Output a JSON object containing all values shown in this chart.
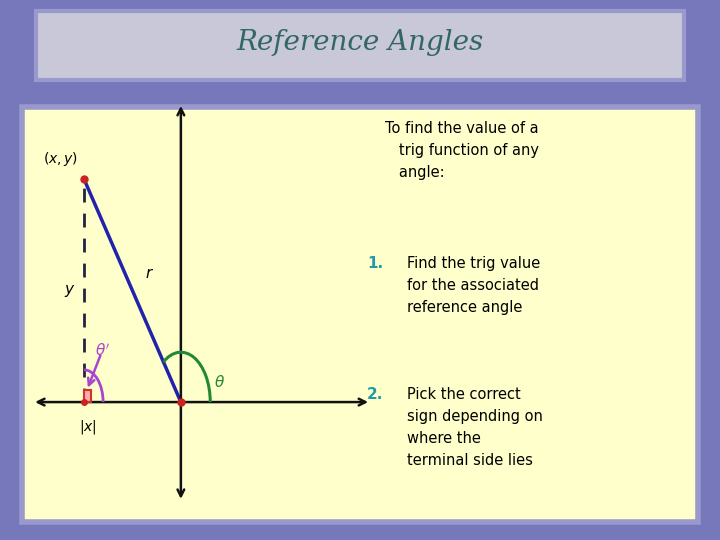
{
  "title": "Reference Angles",
  "title_bg": "#aaaacc",
  "title_bg2": "#c8c8d8",
  "title_fg": "#336666",
  "outer_bg": "#7777bb",
  "inner_bg": "#ffffcc",
  "text_intro": "To find the value of a\n   trig function of any\n   angle:",
  "item1_num": "1.",
  "item1_text": "Find the trig value\nfor the associated\nreference angle",
  "item2_num": "2.",
  "item2_text": "Pick the correct\nsign depending on\nwhere the\nterminal side lies",
  "list_color": "#2299aa",
  "body_color": "#000000",
  "point_x": -1.4,
  "point_y": 1.9,
  "axis_color": "#111111",
  "r_line_color": "#2222aa",
  "dashed_color": "#222244",
  "ref_angle_color": "#aa44cc",
  "theta_color": "#228833",
  "right_angle_color": "#cc3333",
  "dot_color": "#cc2222",
  "label_color": "#000000",
  "xlim": [
    -2.2,
    2.8
  ],
  "ylim": [
    -0.9,
    2.6
  ]
}
